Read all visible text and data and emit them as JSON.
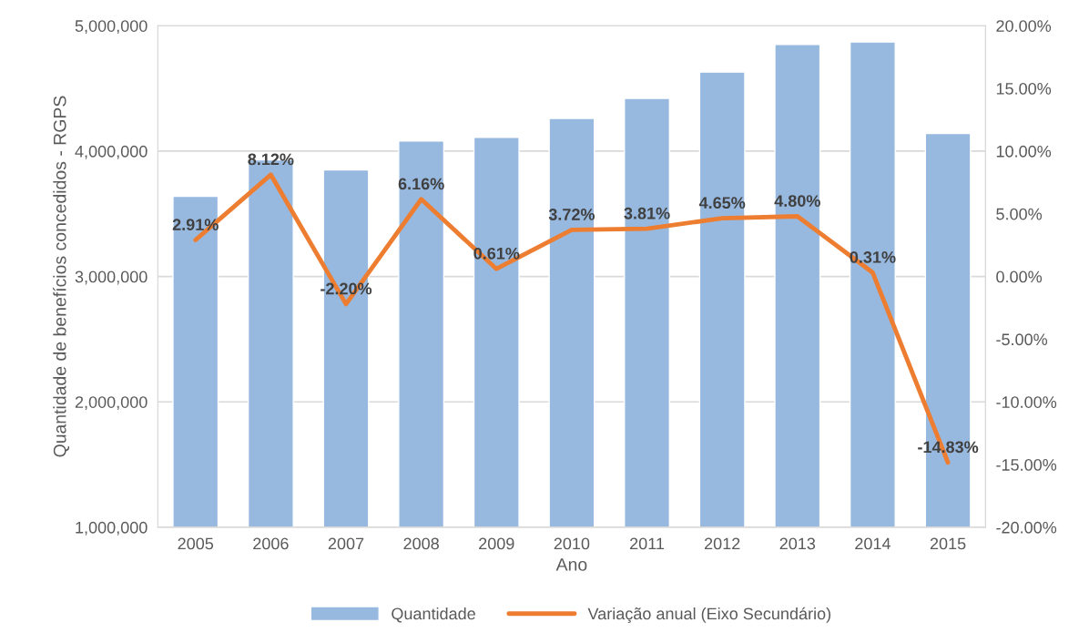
{
  "chart_data": {
    "type": "bar",
    "xlabel": "Ano",
    "ylabel": "Quantidade de benefícios concedidos - RGPS",
    "categories": [
      "2005",
      "2006",
      "2007",
      "2008",
      "2009",
      "2010",
      "2011",
      "2012",
      "2013",
      "2014",
      "2015"
    ],
    "series": [
      {
        "name": "Quantidade",
        "color": "#98b9df",
        "values": [
          3640000,
          3930000,
          3850000,
          4080000,
          4110000,
          4260000,
          4420000,
          4630000,
          4850000,
          4870000,
          4140000
        ]
      },
      {
        "name": "Variação anual (Eixo Secundário)",
        "type": "line",
        "axis": "y2",
        "color": "#ed7d31",
        "values": [
          2.91,
          8.12,
          -2.2,
          6.16,
          0.61,
          3.72,
          3.81,
          4.65,
          4.8,
          0.31,
          -14.83
        ],
        "value_labels": [
          "2.91%",
          "8.12%",
          "-2.20%",
          "6.16%",
          "0.61%",
          "3.72%",
          "3.81%",
          "4.65%",
          "4.80%",
          "0.31%",
          "-14.83%"
        ]
      }
    ],
    "ylim": [
      1000000,
      5000000
    ],
    "yticks": [
      {
        "value": 1000000,
        "label": "1,000,000"
      },
      {
        "value": 2000000,
        "label": "2,000,000"
      },
      {
        "value": 3000000,
        "label": "3,000,000"
      },
      {
        "value": 4000000,
        "label": "4,000,000"
      },
      {
        "value": 5000000,
        "label": "5,000,000"
      }
    ],
    "y2lim": [
      -20,
      20
    ],
    "y2ticks": [
      {
        "value": -20,
        "label": "-20.00%"
      },
      {
        "value": -15,
        "label": "-15.00%"
      },
      {
        "value": -10,
        "label": "-10.00%"
      },
      {
        "value": -5,
        "label": "-5.00%"
      },
      {
        "value": 0,
        "label": "0.00%"
      },
      {
        "value": 5,
        "label": "5.00%"
      },
      {
        "value": 10,
        "label": "10.00%"
      },
      {
        "value": 15,
        "label": "15.00%"
      },
      {
        "value": 20,
        "label": "20.00%"
      }
    ],
    "grid": "y",
    "legend": "bottom",
    "marker": "none",
    "line_style": "solid"
  }
}
